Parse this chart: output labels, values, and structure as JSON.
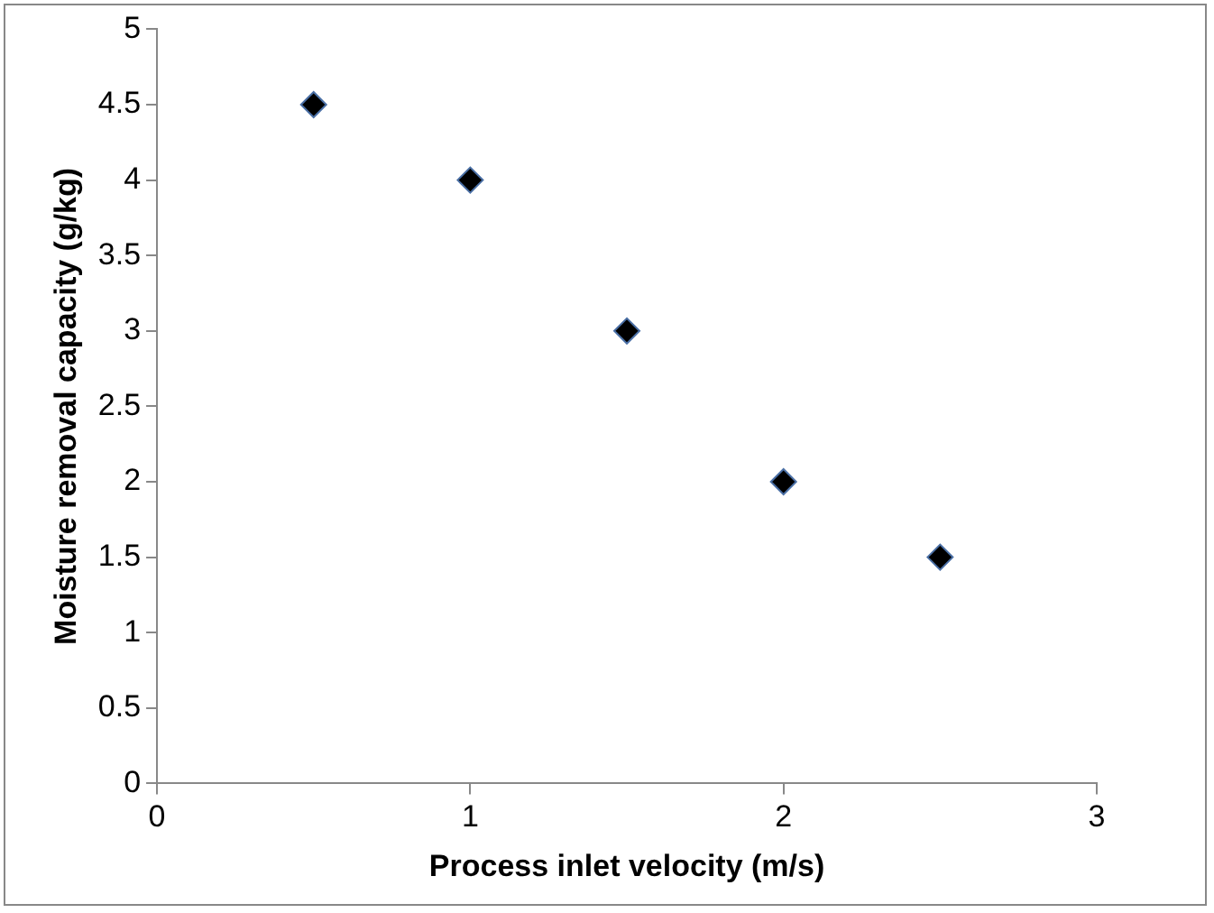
{
  "chart_data": {
    "type": "scatter",
    "xlabel": "Process inlet velocity (m/s)",
    "ylabel": "Moisture removal capacity (g/kg)",
    "x": [
      0.5,
      1,
      1.5,
      2,
      2.5
    ],
    "series": [
      {
        "color": "#000000",
        "values": [
          4.5,
          4,
          3,
          2,
          1.5
        ]
      }
    ],
    "xlim": [
      0,
      3
    ],
    "xticks": [
      0,
      1,
      2,
      3
    ],
    "ylim": [
      0,
      5
    ],
    "yticks": [
      0,
      0.5,
      1,
      1.5,
      2,
      2.5,
      3,
      3.5,
      4,
      4.5,
      5
    ],
    "grid": false,
    "legend": false,
    "marker": "diamond"
  }
}
